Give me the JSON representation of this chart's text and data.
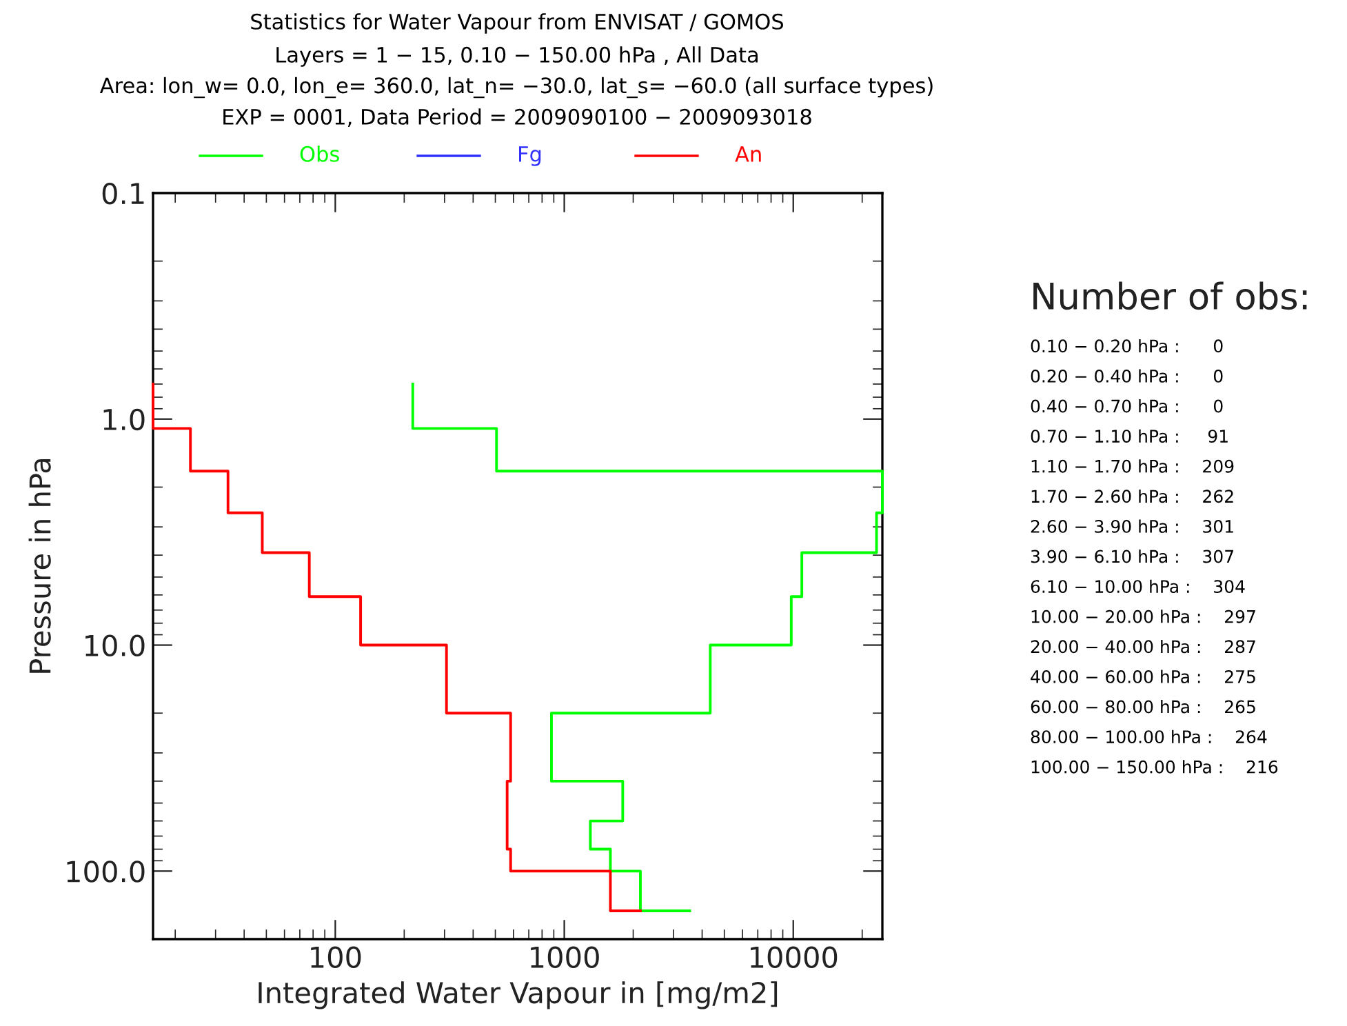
{
  "chart_data": {
    "type": "line",
    "title": "Statistics for Water Vapour from ENVISAT / GOMOS",
    "subtitle": "Layers = 1 − 15, 0.10 − 150.00 hPa , All Data\nArea: lon_w= 0.0, lon_e= 360.0, lat_n= −30.0, lat_s= −60.0 (all surface types)\nEXP = 0001, Data Period = 2009090100 − 2009093018",
    "xlabel": "Integrated Water Vapour in [mg/m2]",
    "ylabel": "Pressure in hPa",
    "log": "xy",
    "xlim": [
      16,
      24500
    ],
    "xticks": [
      100,
      1000,
      10000
    ],
    "ylim": [
      200,
      0.1
    ],
    "yticks": [
      0.1,
      {
        "value": 1,
        "label": "1.0"
      },
      {
        "value": 10,
        "label": "10.0"
      },
      {
        "value": 100,
        "label": "100.0"
      }
    ],
    "grid": false,
    "legend": "top",
    "line_style": "solid",
    "marker": "none",
    "series": [
      {
        "name": "Obs",
        "color": "#00ff00",
        "x": [
          218,
          218,
          506,
          506,
          24500,
          24500,
          23100,
          23100,
          10900,
          10900,
          9800,
          9800,
          4340,
          4340,
          879,
          879,
          1800,
          1800,
          1300,
          1300,
          1590,
          1590,
          2150,
          2150,
          3530
        ],
        "values": [
          0.7,
          1.1,
          1.1,
          1.7,
          1.7,
          2.6,
          2.6,
          3.9,
          3.9,
          6.1,
          6.1,
          10,
          10,
          20,
          20,
          40,
          40,
          60,
          60,
          80,
          80,
          100,
          100,
          150,
          150
        ]
      },
      {
        "name": "Fg",
        "color": "#3030ff",
        "x": [
          null,
          null,
          null,
          null,
          null,
          null,
          null,
          null,
          null,
          null,
          null,
          null,
          null,
          null,
          null,
          null,
          null,
          null,
          null,
          null,
          null,
          null,
          null,
          null,
          null
        ],
        "values": [
          null,
          null,
          null,
          null,
          null,
          null,
          null,
          null,
          null,
          null,
          null,
          null,
          null,
          null,
          null,
          null,
          null,
          null,
          null,
          null,
          null,
          null,
          null,
          null,
          null
        ]
      },
      {
        "name": "An",
        "color": "#ff0000",
        "x": [
          16,
          16,
          23.3,
          23.3,
          34,
          34,
          48,
          48,
          77,
          77,
          129,
          129,
          306,
          306,
          583,
          583,
          563,
          563,
          563,
          563,
          583,
          583,
          1590,
          1590,
          2150
        ],
        "values": [
          0.7,
          1.1,
          1.1,
          1.7,
          1.7,
          2.6,
          2.6,
          3.9,
          3.9,
          6.1,
          6.1,
          10,
          10,
          20,
          20,
          40,
          40,
          60,
          60,
          80,
          80,
          100,
          100,
          150,
          150
        ]
      }
    ],
    "annotations": [
      "Number of obs:",
      "0.10 − 0.20 hPa :      0",
      "0.20 − 0.40 hPa :      0",
      "0.40 − 0.70 hPa :      0",
      "0.70 − 1.10 hPa :     91",
      "1.10 − 1.70 hPa :    209",
      "1.70 − 2.60 hPa :    262",
      "2.60 − 3.90 hPa :    301",
      "3.90 − 6.10 hPa :    307",
      "6.10 − 10.00 hPa :    304",
      "10.00 − 20.00 hPa :    297",
      "20.00 − 40.00 hPa :    287",
      "40.00 − 60.00 hPa :    275",
      "60.00 − 80.00 hPa :    265",
      "80.00 − 100.00 hPa :    264",
      "100.00 − 150.00 hPa :    216"
    ]
  }
}
